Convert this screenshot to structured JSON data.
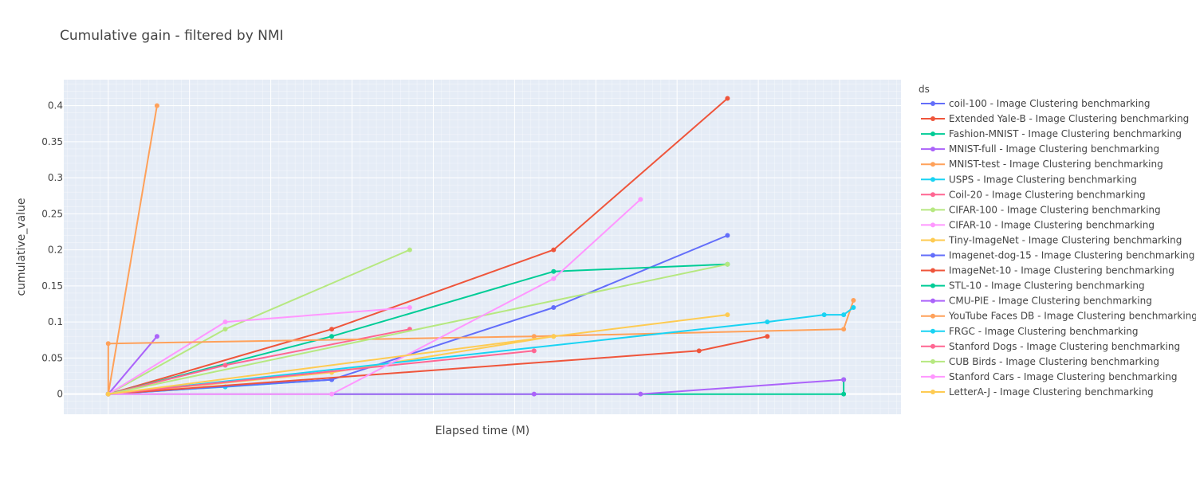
{
  "chart_data": {
    "type": "line",
    "title": "Cumulative gain - filtered by NMI",
    "xlabel": "Elapsed time (M)",
    "ylabel": "cumulative_value",
    "xlim": [
      -0.0547,
      0.9755
    ],
    "ylim": [
      -0.028,
      0.436
    ],
    "yticks": [
      0,
      0.05,
      0.1,
      0.15,
      0.2,
      0.25,
      0.3,
      0.35,
      0.4
    ],
    "ytick_labels": [
      "0",
      "0.05",
      "0.1",
      "0.15",
      "0.2",
      "0.25",
      "0.3",
      "0.35",
      "0.4"
    ],
    "x_tick_labels_visible": false,
    "grid": true,
    "legend_title": "ds",
    "legend_position": "right",
    "series": [
      {
        "name": "coil-100 - Image Clustering benchmarking",
        "color": "#636efa",
        "x": [
          0,
          0.275,
          0.548,
          0.762
        ],
        "y": [
          0,
          0.02,
          0.12,
          0.22
        ]
      },
      {
        "name": "Extended Yale-B - Image Clustering benchmarking",
        "color": "#EF553B",
        "x": [
          0,
          0.275,
          0.548,
          0.762
        ],
        "y": [
          0,
          0.09,
          0.2,
          0.41
        ]
      },
      {
        "name": "Fashion-MNIST - Image Clustering benchmarking",
        "color": "#00cc96",
        "x": [
          0,
          0.275,
          0.548,
          0.762
        ],
        "y": [
          0,
          0.08,
          0.17,
          0.18
        ]
      },
      {
        "name": "MNIST-full - Image Clustering benchmarking",
        "color": "#ab63fa",
        "x": [
          0,
          0.06
        ],
        "y": [
          0,
          0.08
        ]
      },
      {
        "name": "MNIST-test - Image Clustering benchmarking",
        "color": "#FFA15A",
        "x": [
          0,
          0.06
        ],
        "y": [
          0,
          0.4
        ]
      },
      {
        "name": "USPS - Image Clustering benchmarking",
        "color": "#19d3f3",
        "x": [
          0,
          0.144,
          0.275
        ],
        "y": [
          0,
          0.01,
          0.02
        ]
      },
      {
        "name": "Coil-20 - Image Clustering benchmarking",
        "color": "#FF6692",
        "x": [
          0,
          0.144,
          0.371
        ],
        "y": [
          0,
          0.04,
          0.09
        ]
      },
      {
        "name": "CIFAR-100 - Image Clustering benchmarking",
        "color": "#B6E880",
        "x": [
          0,
          0.144,
          0.371
        ],
        "y": [
          0,
          0.09,
          0.2
        ]
      },
      {
        "name": "CIFAR-10 - Image Clustering benchmarking",
        "color": "#FF97FF",
        "x": [
          0,
          0.144,
          0.371
        ],
        "y": [
          0,
          0.1,
          0.12
        ]
      },
      {
        "name": "Tiny-ImageNet - Image Clustering benchmarking",
        "color": "#FECB52",
        "x": [
          0,
          0.275,
          0.548
        ],
        "y": [
          0,
          0.03,
          0.08
        ]
      },
      {
        "name": "Imagenet-dog-15 - Image Clustering benchmarking",
        "color": "#636efa",
        "x": [
          0,
          0.275
        ],
        "y": [
          0,
          0.02
        ]
      },
      {
        "name": "ImageNet-10 - Image Clustering benchmarking",
        "color": "#EF553B",
        "x": [
          0,
          0.727,
          0.811
        ],
        "y": [
          0,
          0.06,
          0.08
        ]
      },
      {
        "name": "STL-10 - Image Clustering benchmarking",
        "color": "#00cc96",
        "x": [
          0,
          0.905,
          0.905
        ],
        "y": [
          0,
          0,
          0.02
        ]
      },
      {
        "name": "CMU-PIE - Image Clustering benchmarking",
        "color": "#ab63fa",
        "x": [
          0,
          0.524,
          0.655,
          0.905
        ],
        "y": [
          0,
          0,
          0,
          0.02
        ]
      },
      {
        "name": "YouTube Faces DB - Image Clustering benchmarking",
        "color": "#FFA15A",
        "x": [
          0,
          0,
          0.524,
          0.905,
          0.917
        ],
        "y": [
          0,
          0.07,
          0.08,
          0.09,
          0.13
        ]
      },
      {
        "name": "FRGC - Image Clustering benchmarking",
        "color": "#19d3f3",
        "x": [
          0,
          0.811,
          0.881,
          0.905,
          0.917
        ],
        "y": [
          0,
          0.1,
          0.11,
          0.11,
          0.12
        ]
      },
      {
        "name": "Stanford Dogs - Image Clustering benchmarking",
        "color": "#FF6692",
        "x": [
          0,
          0.524
        ],
        "y": [
          0,
          0.06
        ]
      },
      {
        "name": "CUB Birds - Image Clustering benchmarking",
        "color": "#B6E880",
        "x": [
          0,
          0.762
        ],
        "y": [
          0,
          0.18
        ]
      },
      {
        "name": "Stanford Cars - Image Clustering benchmarking",
        "color": "#FF97FF",
        "x": [
          0,
          0.275,
          0.548,
          0.655
        ],
        "y": [
          0,
          0,
          0.16,
          0.27
        ]
      },
      {
        "name": "LetterA-J - Image Clustering benchmarking",
        "color": "#FECB52",
        "x": [
          0,
          0.548,
          0.762
        ],
        "y": [
          0,
          0.08,
          0.11
        ]
      }
    ]
  },
  "colors": {
    "plot_background": "#e5ecf6",
    "grid": "#ffffff",
    "text": "#444444"
  }
}
